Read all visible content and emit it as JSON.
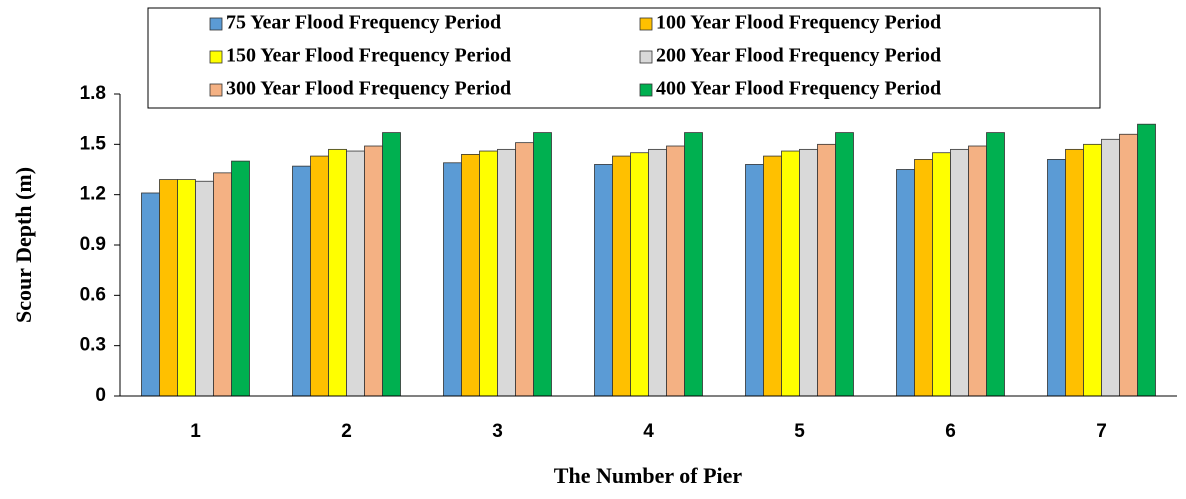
{
  "chart_data": {
    "type": "bar",
    "x_label": "The Number of Pier",
    "y_label": "Scour Depth (m)",
    "categories": [
      "1",
      "2",
      "3",
      "4",
      "5",
      "6",
      "7"
    ],
    "series": [
      {
        "name": "75 Year Flood Frequency Period",
        "color": "#5b9bd5",
        "values": [
          1.21,
          1.37,
          1.39,
          1.38,
          1.38,
          1.35,
          1.41
        ]
      },
      {
        "name": "100 Year Flood Frequency Period",
        "color": "#ffc000",
        "values": [
          1.29,
          1.43,
          1.44,
          1.43,
          1.43,
          1.41,
          1.47
        ]
      },
      {
        "name": "150 Year Flood Frequency Period",
        "color": "#ffff00",
        "values": [
          1.29,
          1.47,
          1.46,
          1.45,
          1.46,
          1.45,
          1.5
        ]
      },
      {
        "name": "200 Year Flood Frequency Period",
        "color": "#d9d9d9",
        "values": [
          1.28,
          1.46,
          1.47,
          1.47,
          1.47,
          1.47,
          1.53
        ]
      },
      {
        "name": "300 Year Flood Frequency Period",
        "color": "#f4b183",
        "values": [
          1.33,
          1.49,
          1.51,
          1.49,
          1.5,
          1.49,
          1.56
        ]
      },
      {
        "name": "400 Year Flood Frequency Period",
        "color": "#00b050",
        "values": [
          1.4,
          1.57,
          1.57,
          1.57,
          1.57,
          1.57,
          1.62
        ]
      }
    ],
    "ylim": [
      0,
      1.8
    ],
    "yticks": [
      0,
      0.3,
      0.6,
      0.9,
      1.2,
      1.5,
      1.8
    ],
    "grid": false
  }
}
